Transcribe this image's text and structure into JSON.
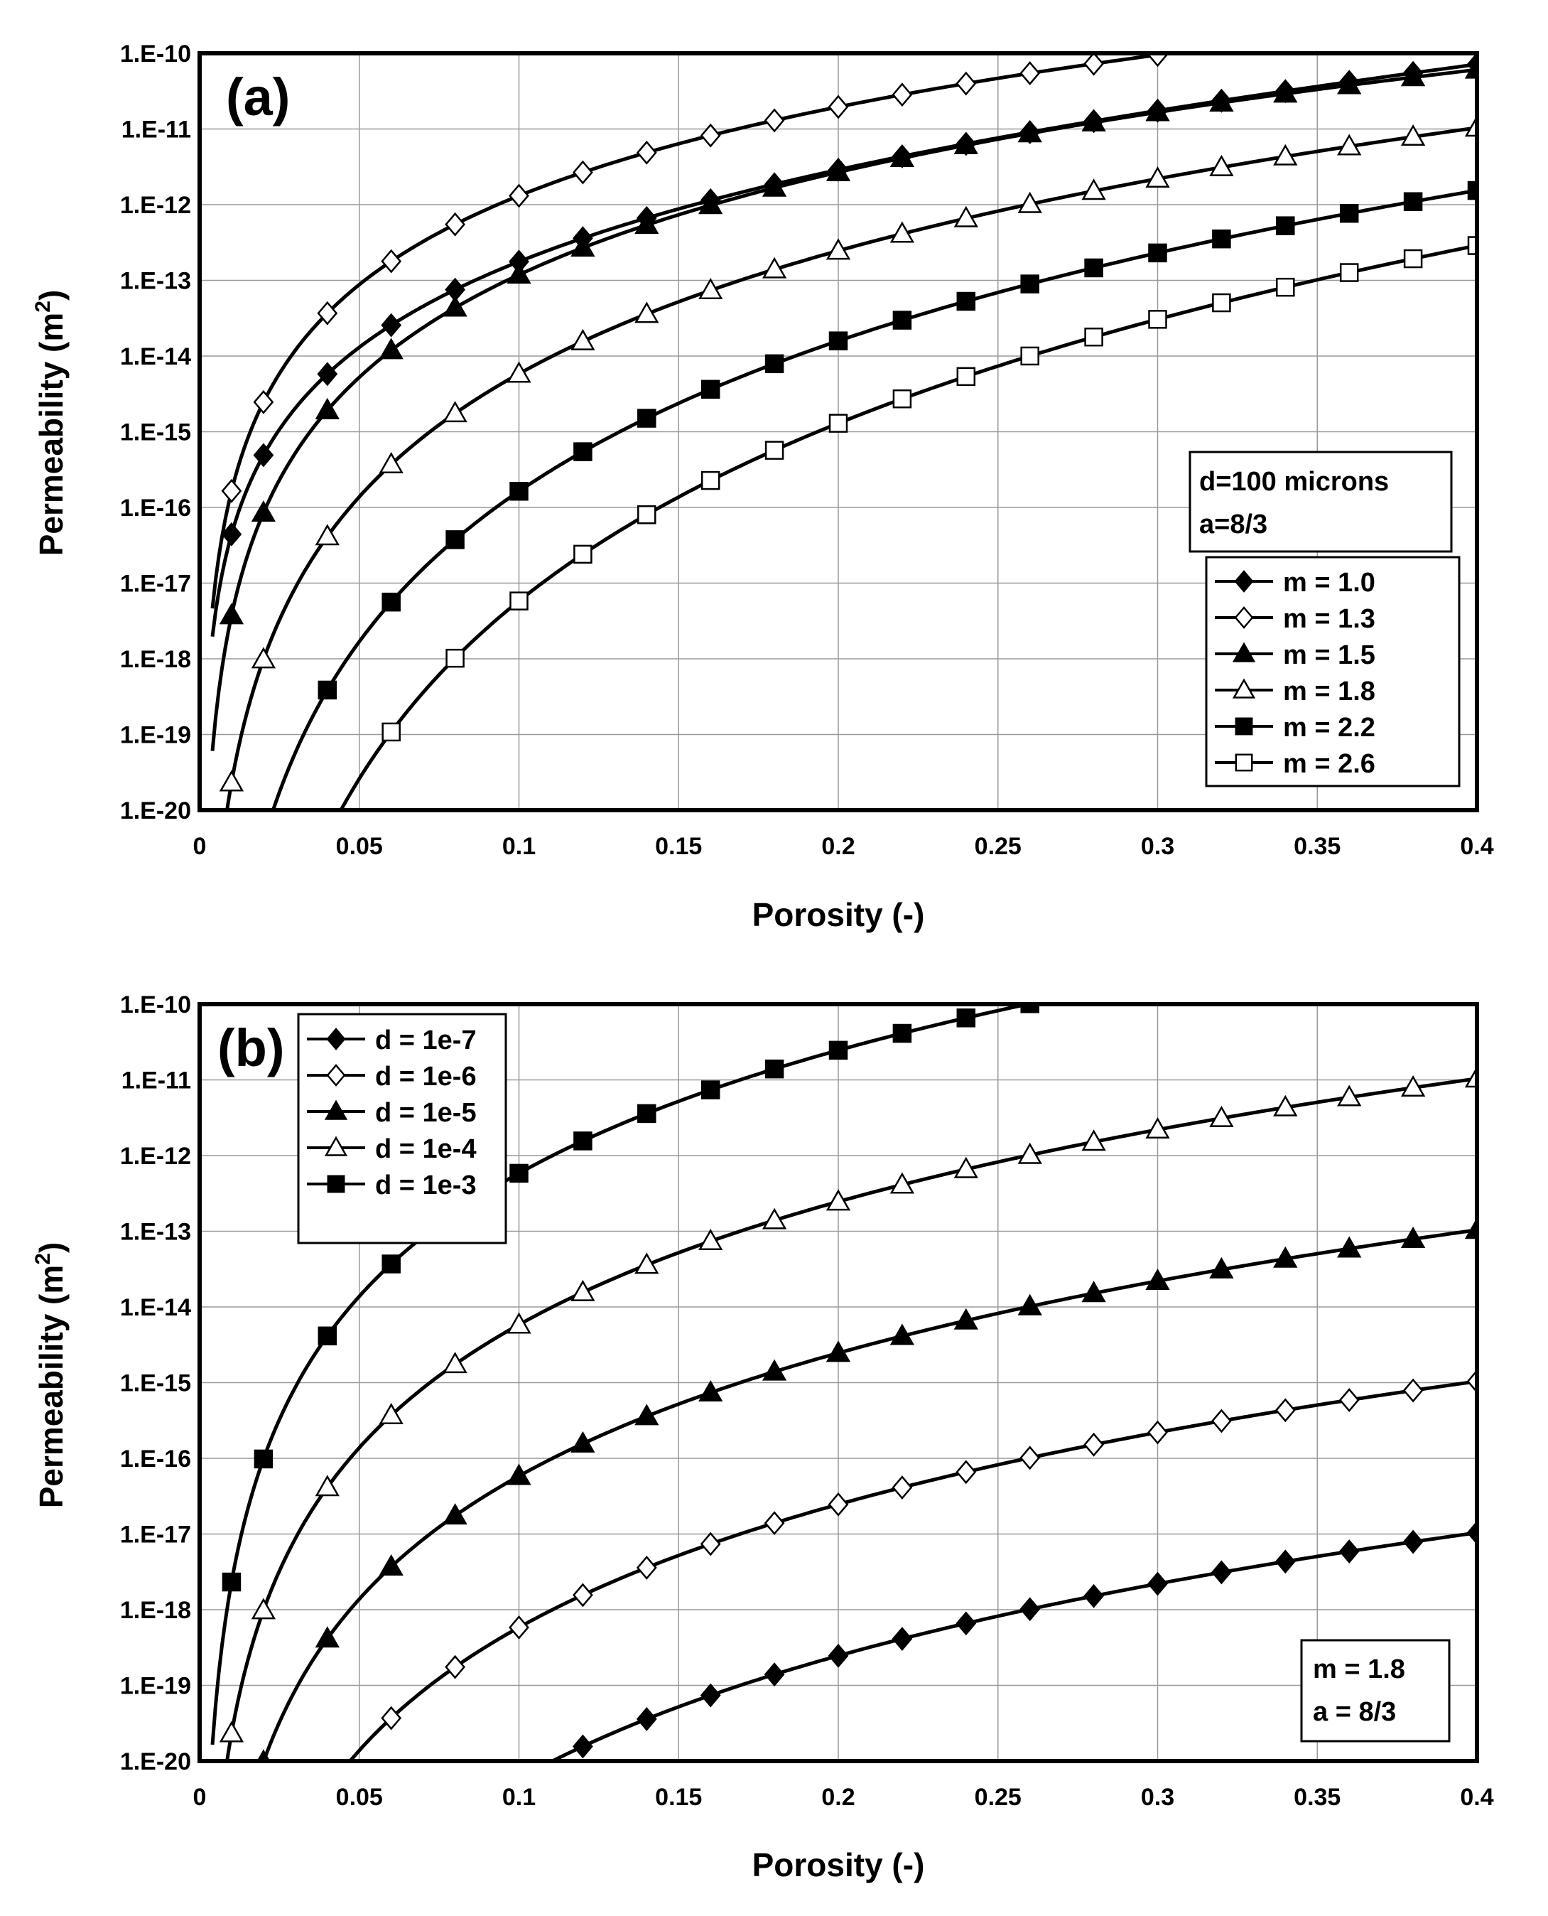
{
  "chart_data": [
    {
      "id": "a",
      "type": "line",
      "panel_label": "(a)",
      "xlabel": "Porosity (-)",
      "ylabel_prefix": "Permeability (m",
      "ylabel_sup": "2",
      "ylabel_suffix": ")",
      "xlim": [
        0,
        0.4
      ],
      "ylim_log10": [
        -20,
        -10
      ],
      "x_ticks": [
        0,
        0.05,
        0.1,
        0.15,
        0.2,
        0.25,
        0.3,
        0.35,
        0.4
      ],
      "x_tick_labels": [
        "0",
        "0.05",
        "0.1",
        "0.15",
        "0.2",
        "0.25",
        "0.3",
        "0.35",
        "0.4"
      ],
      "y_ticks_log10": [
        -10,
        -11,
        -12,
        -13,
        -14,
        -15,
        -16,
        -17,
        -18,
        -19,
        -20
      ],
      "y_tick_labels": [
        "1.E-10",
        "1.E-11",
        "1.E-12",
        "1.E-13",
        "1.E-14",
        "1.E-15",
        "1.E-16",
        "1.E-17",
        "1.E-18",
        "1.E-19",
        "1.E-20"
      ],
      "grid": true,
      "model": {
        "d": 0.0001,
        "a": 2.6666667
      },
      "annotation_lines": [
        "d=100 microns",
        "a=8/3"
      ],
      "legend_position": "right",
      "series": [
        {
          "name": "m = 1.0",
          "marker": "diamond-filled",
          "m": 1.0,
          "d": 0.0001
        },
        {
          "name": "m = 1.3",
          "marker": "diamond-open",
          "m": 1.3,
          "d": 0.0001
        },
        {
          "name": "m = 1.5",
          "marker": "triangle-filled",
          "m": 1.5,
          "d": 0.0001
        },
        {
          "name": "m = 1.8",
          "marker": "triangle-open",
          "m": 1.8,
          "d": 0.0001
        },
        {
          "name": "m = 2.2",
          "marker": "square-filled",
          "m": 2.2,
          "d": 0.0001
        },
        {
          "name": "m = 2.6",
          "marker": "square-open",
          "m": 2.6,
          "d": 0.0001
        }
      ]
    },
    {
      "id": "b",
      "type": "line",
      "panel_label": "(b)",
      "xlabel": "Porosity (-)",
      "ylabel_prefix": "Permeability (m",
      "ylabel_sup": "2",
      "ylabel_suffix": ")",
      "xlim": [
        0,
        0.4
      ],
      "ylim_log10": [
        -20,
        -10
      ],
      "x_ticks": [
        0,
        0.05,
        0.1,
        0.15,
        0.2,
        0.25,
        0.3,
        0.35,
        0.4
      ],
      "x_tick_labels": [
        "0",
        "0.05",
        "0.1",
        "0.15",
        "0.2",
        "0.25",
        "0.3",
        "0.35",
        "0.4"
      ],
      "y_ticks_log10": [
        -10,
        -11,
        -12,
        -13,
        -14,
        -15,
        -16,
        -17,
        -18,
        -19,
        -20
      ],
      "y_tick_labels": [
        "1.E-10",
        "1.E-11",
        "1.E-12",
        "1.E-13",
        "1.E-14",
        "1.E-15",
        "1.E-16",
        "1.E-17",
        "1.E-18",
        "1.E-19",
        "1.E-20"
      ],
      "grid": true,
      "model": {
        "m": 1.8,
        "a": 2.6666667
      },
      "annotation_lines": [
        "m = 1.8",
        "a = 8/3"
      ],
      "legend_position": "top-left",
      "series": [
        {
          "name": "d = 1e-7",
          "marker": "diamond-filled",
          "m": 1.8,
          "d": 1e-07
        },
        {
          "name": "d = 1e-6",
          "marker": "diamond-open",
          "m": 1.8,
          "d": 1e-06
        },
        {
          "name": "d = 1e-5",
          "marker": "triangle-filled",
          "m": 1.8,
          "d": 1e-05
        },
        {
          "name": "d = 1e-4",
          "marker": "triangle-open",
          "m": 1.8,
          "d": 0.0001
        },
        {
          "name": "d = 1e-3",
          "marker": "square-filled",
          "m": 1.8,
          "d": 0.001
        }
      ]
    }
  ]
}
